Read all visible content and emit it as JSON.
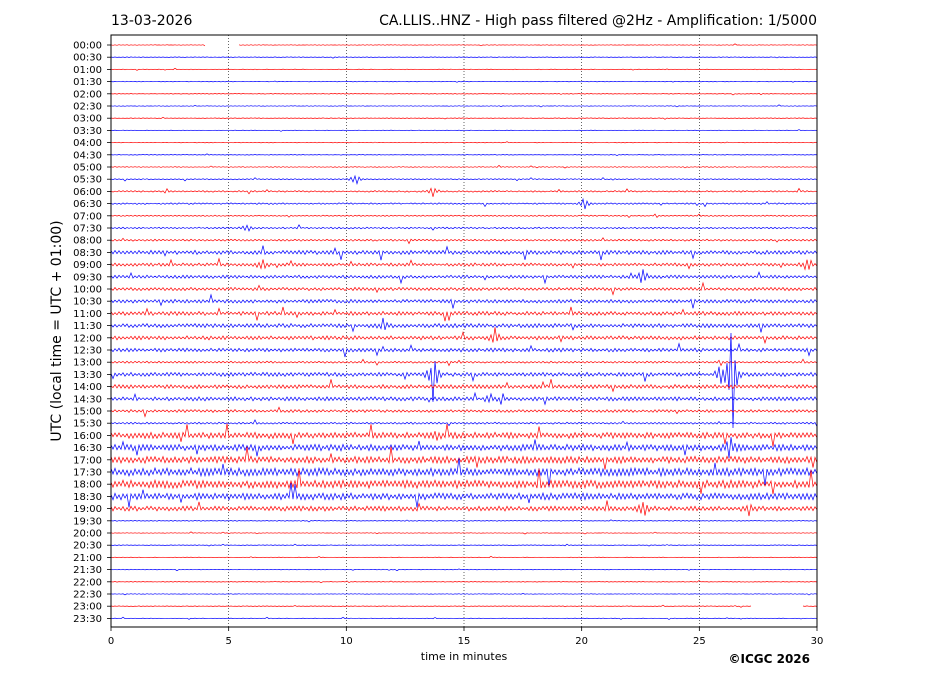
{
  "header": {
    "date": "13-03-2026",
    "title": "CA.LLIS..HNZ - High pass filtered @2Hz - Amplification: 1/5000"
  },
  "footer": {
    "copyright": "©ICGC 2026"
  },
  "colors": {
    "red": "#ff0000",
    "blue": "#0000ff",
    "grid": "#000000"
  },
  "chart_data": {
    "type": "helicorder",
    "xlabel": "time in minutes",
    "ylabel": "UTC (local time = UTC + 01:00)",
    "xlim": [
      0,
      30
    ],
    "xticks": [
      0,
      5,
      10,
      15,
      20,
      25,
      30
    ],
    "vgrid_minutes": [
      5,
      10,
      15,
      20,
      25
    ],
    "line_labels": [
      "00:00",
      "00:30",
      "01:00",
      "01:30",
      "02:00",
      "02:30",
      "03:00",
      "03:30",
      "04:00",
      "04:30",
      "05:00",
      "05:30",
      "06:00",
      "06:30",
      "07:00",
      "07:30",
      "08:00",
      "08:30",
      "09:00",
      "09:30",
      "10:00",
      "10:30",
      "11:00",
      "11:30",
      "12:00",
      "12:30",
      "13:00",
      "13:30",
      "14:00",
      "14:30",
      "15:00",
      "15:30",
      "16:00",
      "16:30",
      "17:00",
      "17:30",
      "18:00",
      "18:30",
      "19:00",
      "19:30",
      "20:00",
      "20:30",
      "21:00",
      "21:30",
      "22:00",
      "22:30",
      "23:00",
      "23:30"
    ],
    "line_colors": [
      "red",
      "blue"
    ],
    "noise_level": [
      0.3,
      0.3,
      0.3,
      0.3,
      0.3,
      0.3,
      0.3,
      0.3,
      0.3,
      0.3,
      0.4,
      0.5,
      0.8,
      0.8,
      0.6,
      0.8,
      1.0,
      2.0,
      1.6,
      1.6,
      1.6,
      1.8,
      2.0,
      2.0,
      2.0,
      1.8,
      1.0,
      2.0,
      2.0,
      2.0,
      1.4,
      1.0,
      3.0,
      3.2,
      3.4,
      4.0,
      4.0,
      3.4,
      2.4,
      0.4,
      0.3,
      0.3,
      0.3,
      0.3,
      0.3,
      0.3,
      0.3,
      0.3
    ],
    "events": [
      {
        "line": 11,
        "minute": 10.4,
        "amp": 8
      },
      {
        "line": 12,
        "minute": 13.7,
        "amp": 6
      },
      {
        "line": 13,
        "minute": 20.1,
        "amp": 9
      },
      {
        "line": 15,
        "minute": 5.8,
        "amp": 6
      },
      {
        "line": 18,
        "minute": 6.4,
        "amp": 9
      },
      {
        "line": 18,
        "minute": 29.6,
        "amp": 10
      },
      {
        "line": 19,
        "minute": 22.6,
        "amp": 10
      },
      {
        "line": 23,
        "minute": 11.6,
        "amp": 10
      },
      {
        "line": 24,
        "minute": 16.3,
        "amp": 12
      },
      {
        "line": 27,
        "minute": 13.7,
        "amp": 30
      },
      {
        "line": 27,
        "minute": 25.9,
        "amp": 12
      },
      {
        "line": 27,
        "minute": 26.4,
        "amp": 70
      },
      {
        "line": 29,
        "minute": 16.1,
        "amp": 8
      },
      {
        "line": 32,
        "minute": 13.8,
        "amp": 6
      },
      {
        "line": 33,
        "minute": 26.3,
        "amp": 12
      },
      {
        "line": 38,
        "minute": 22.6,
        "amp": 12
      },
      {
        "line": 38,
        "minute": 27.1,
        "amp": 8
      }
    ],
    "gaps": [
      {
        "line": 0,
        "from": 4.0,
        "to": 5.4
      },
      {
        "line": 46,
        "from": 27.2,
        "to": 29.4
      }
    ]
  }
}
